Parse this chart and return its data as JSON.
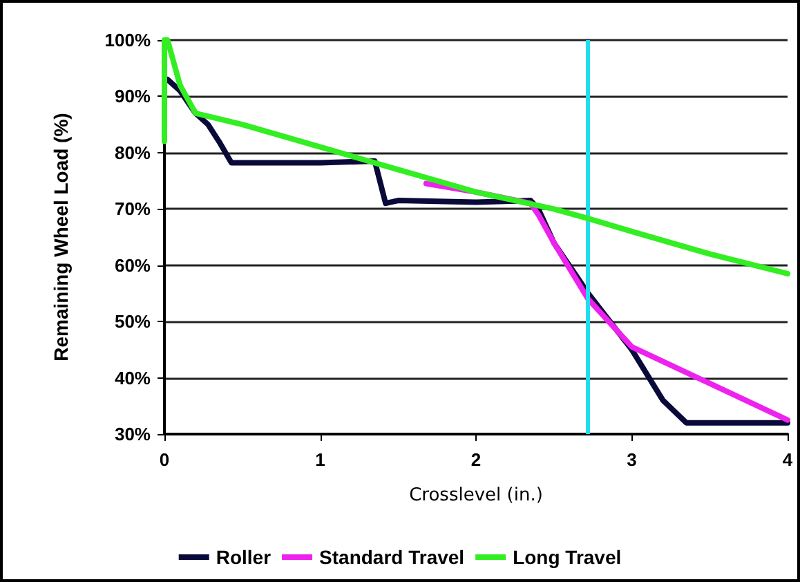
{
  "chart_data": {
    "type": "line",
    "xlabel": "Crosslevel (in.)",
    "ylabel": "Remaining Wheel Load (%)",
    "xlim": [
      0,
      4
    ],
    "xticks": [
      0,
      1,
      2,
      3,
      4
    ],
    "ylim": [
      30,
      100
    ],
    "yticks": [
      {
        "value": 30,
        "label": "30%"
      },
      {
        "value": 40,
        "label": "40%"
      },
      {
        "value": 50,
        "label": "50%"
      },
      {
        "value": 60,
        "label": "60%"
      },
      {
        "value": 70,
        "label": "70%"
      },
      {
        "value": 80,
        "label": "80%"
      },
      {
        "value": 90,
        "label": "90%"
      },
      {
        "value": 100,
        "label": "100%"
      }
    ],
    "grid": "y",
    "legend": "bottom",
    "marker": "none",
    "line_style": "solid",
    "series": [
      {
        "name": "Roller",
        "color": "#0a0a3a",
        "x": [
          0.02,
          0.1,
          0.2,
          0.28,
          0.35,
          0.43,
          1.0,
          1.35,
          1.42,
          1.5,
          2.0,
          2.35,
          2.4,
          2.5,
          2.72,
          3.0,
          3.2,
          3.35,
          4.0
        ],
        "values": [
          93,
          91,
          87,
          85,
          82,
          78.2,
          78.2,
          78.5,
          71,
          71.5,
          71.2,
          71.5,
          70,
          64,
          55,
          45,
          36,
          32,
          32
        ]
      },
      {
        "name": "Standard Travel",
        "color": "#ee22ee",
        "x": [
          1.68,
          2.0,
          2.35,
          2.4,
          2.5,
          2.72,
          3.0,
          3.5,
          4.0
        ],
        "values": [
          74.5,
          73,
          71,
          69,
          64,
          54,
          45.5,
          39,
          32.5
        ]
      },
      {
        "name": "Long Travel",
        "color": "#33ee22",
        "x": [
          0,
          0,
          0.02,
          0.1,
          0.2,
          0.5,
          1.0,
          1.5,
          2.0,
          2.5,
          2.72,
          3.0,
          3.5,
          4.0
        ],
        "values": [
          82,
          100,
          100,
          92,
          87,
          85,
          81,
          77,
          73,
          70,
          68.3,
          66,
          62,
          58.5
        ]
      }
    ],
    "ref_lines": [
      {
        "axis": "x",
        "value": 2.72,
        "color": "#22ddee"
      }
    ]
  }
}
